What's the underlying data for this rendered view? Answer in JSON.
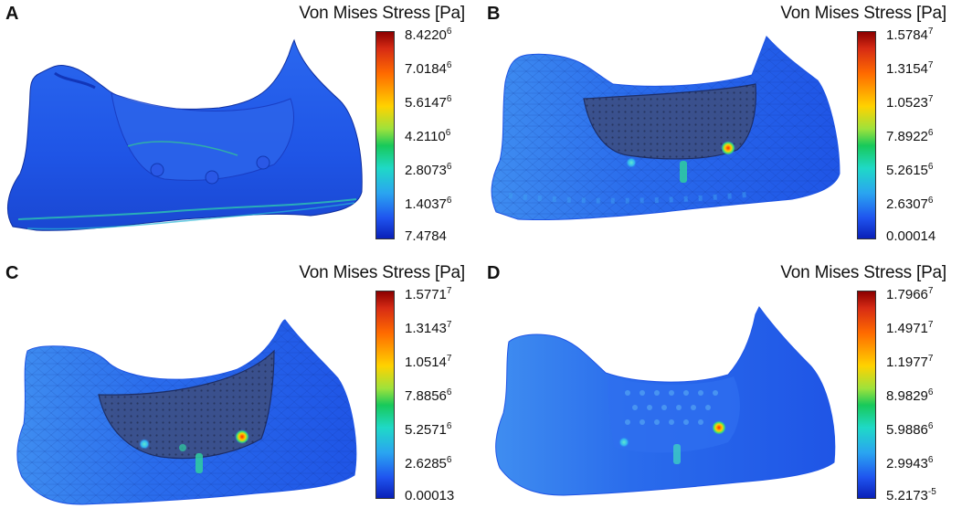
{
  "figure": {
    "colorbar_title": "Von Mises Stress [Pa]",
    "panels": [
      {
        "letter": "A",
        "ticks": [
          {
            "base": "8.4220",
            "exp": "6"
          },
          {
            "base": "7.0184",
            "exp": "6"
          },
          {
            "base": "5.6147",
            "exp": "6"
          },
          {
            "base": "4.2110",
            "exp": "6"
          },
          {
            "base": "2.8073",
            "exp": "6"
          },
          {
            "base": "1.4037",
            "exp": "6"
          },
          {
            "base": "7.4784",
            "exp": ""
          }
        ]
      },
      {
        "letter": "B",
        "ticks": [
          {
            "base": "1.5784",
            "exp": "7"
          },
          {
            "base": "1.3154",
            "exp": "7"
          },
          {
            "base": "1.0523",
            "exp": "7"
          },
          {
            "base": "7.8922",
            "exp": "6"
          },
          {
            "base": "5.2615",
            "exp": "6"
          },
          {
            "base": "2.6307",
            "exp": "6"
          },
          {
            "base": "0.00014",
            "exp": ""
          }
        ]
      },
      {
        "letter": "C",
        "ticks": [
          {
            "base": "1.5771",
            "exp": "7"
          },
          {
            "base": "1.3143",
            "exp": "7"
          },
          {
            "base": "1.0514",
            "exp": "7"
          },
          {
            "base": "7.8856",
            "exp": "6"
          },
          {
            "base": "5.2571",
            "exp": "6"
          },
          {
            "base": "2.6285",
            "exp": "6"
          },
          {
            "base": "0.00013",
            "exp": ""
          }
        ]
      },
      {
        "letter": "D",
        "ticks": [
          {
            "base": "1.7966",
            "exp": "7"
          },
          {
            "base": "1.4971",
            "exp": "7"
          },
          {
            "base": "1.1977",
            "exp": "7"
          },
          {
            "base": "8.9829",
            "exp": "6"
          },
          {
            "base": "5.9886",
            "exp": "6"
          },
          {
            "base": "2.9943",
            "exp": "6"
          },
          {
            "base": "5.2173",
            "exp": "-5"
          }
        ]
      }
    ],
    "colors": {
      "background": "#ffffff",
      "bone_blue": "#1f55e6",
      "bone_dark": "#1236b8",
      "plate_gray": "#3a4a78",
      "hotspot": "#ff3a00"
    }
  }
}
